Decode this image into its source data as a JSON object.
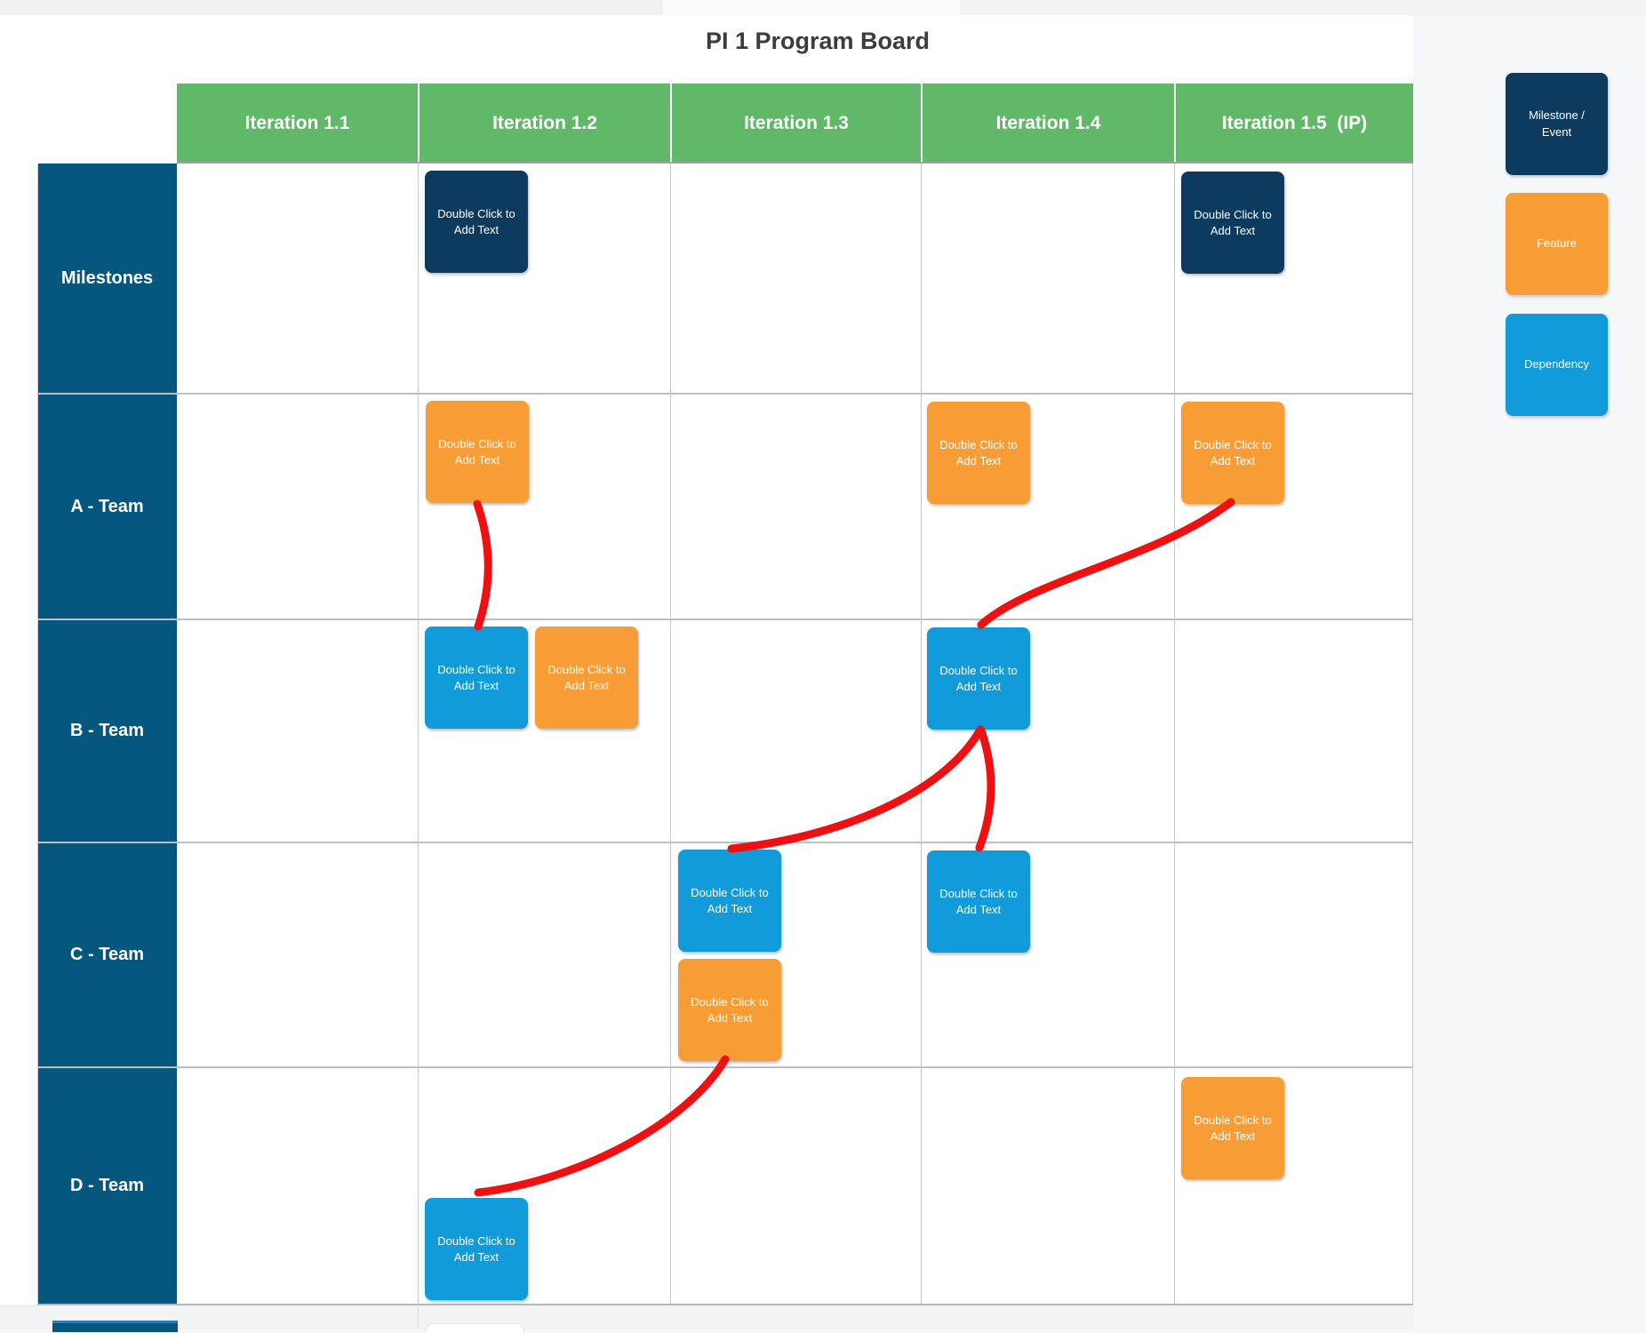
{
  "page": {
    "title": "PI 1 Program Board"
  },
  "board": {
    "columns": [
      {
        "label": "Iteration 1.1"
      },
      {
        "label": "Iteration 1.2"
      },
      {
        "label": "Iteration 1.3"
      },
      {
        "label": "Iteration 1.4"
      },
      {
        "label": "Iteration 1.5  (IP)"
      }
    ],
    "rows": [
      {
        "label": "Milestones"
      },
      {
        "label": "A - Team"
      },
      {
        "label": "B - Team"
      },
      {
        "label": "C - Team"
      },
      {
        "label": "D - Team"
      }
    ],
    "cards": [
      {
        "id": "m1",
        "type": "milestone",
        "row": "Milestones",
        "column": "Iteration 1.2",
        "label": "Double Click to Add Text"
      },
      {
        "id": "m2",
        "type": "milestone",
        "row": "Milestones",
        "column": "Iteration 1.5  (IP)",
        "label": "Double Click to Add Text"
      },
      {
        "id": "a1",
        "type": "feature",
        "row": "A - Team",
        "column": "Iteration 1.2",
        "label": "Double Click to Add Text"
      },
      {
        "id": "a2",
        "type": "feature",
        "row": "A - Team",
        "column": "Iteration 1.4",
        "label": "Double Click to Add Text"
      },
      {
        "id": "a3",
        "type": "feature",
        "row": "A - Team",
        "column": "Iteration 1.5  (IP)",
        "label": "Double Click to Add Text"
      },
      {
        "id": "b1",
        "type": "dependency",
        "row": "B - Team",
        "column": "Iteration 1.2",
        "label": "Double Click to Add Text"
      },
      {
        "id": "b2",
        "type": "feature",
        "row": "B - Team",
        "column": "Iteration 1.2",
        "label": "Double Click to Add Text"
      },
      {
        "id": "b3",
        "type": "dependency",
        "row": "B - Team",
        "column": "Iteration 1.4",
        "label": "Double Click to Add Text"
      },
      {
        "id": "c1",
        "type": "dependency",
        "row": "C - Team",
        "column": "Iteration 1.3",
        "label": "Double Click to Add Text"
      },
      {
        "id": "c2",
        "type": "feature",
        "row": "C - Team",
        "column": "Iteration 1.3",
        "label": "Double Click to Add Text"
      },
      {
        "id": "c3",
        "type": "dependency",
        "row": "C - Team",
        "column": "Iteration 1.4",
        "label": "Double Click to Add Text"
      },
      {
        "id": "d1",
        "type": "feature",
        "row": "D - Team",
        "column": "Iteration 1.5  (IP)",
        "label": "Double Click to Add Text"
      },
      {
        "id": "d2",
        "type": "dependency",
        "row": "D - Team",
        "column": "Iteration 1.2",
        "label": "Double Click to Add Text"
      }
    ],
    "connectors": [
      {
        "from": "a1",
        "to": "b1"
      },
      {
        "from": "a3",
        "to": "b3"
      },
      {
        "from": "b3",
        "to": "c1"
      },
      {
        "from": "b3",
        "to": "c3"
      },
      {
        "from": "c2",
        "to": "d2"
      }
    ]
  },
  "legend": {
    "items": [
      {
        "label": "Milestone / Event",
        "color": "#0d3a5f"
      },
      {
        "label": "Feature",
        "color": "#f89c35"
      },
      {
        "label": "Dependency",
        "color": "#119bdb"
      }
    ]
  },
  "colors": {
    "header_green": "#61b869",
    "row_header_blue": "#065780",
    "milestone_navy": "#0d3a5f",
    "feature_orange": "#f89c35",
    "dependency_blue": "#119bdb",
    "connector_red": "#ee1111"
  }
}
